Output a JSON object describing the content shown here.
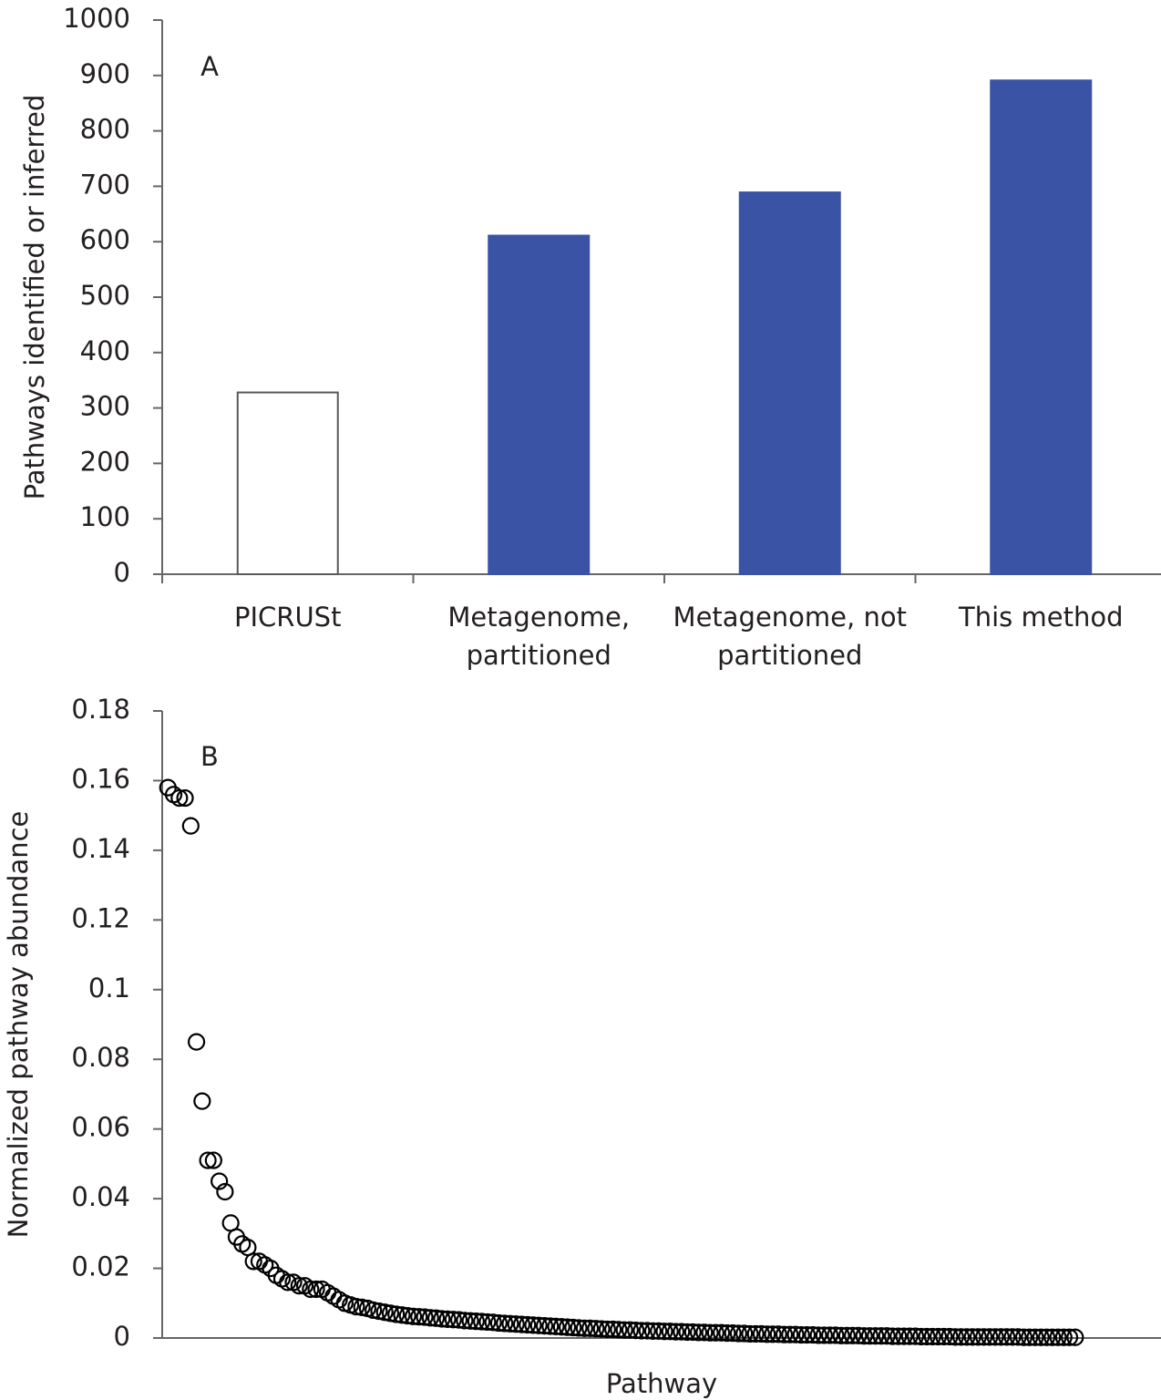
{
  "chart_data": [
    {
      "type": "bar",
      "annotation": "A",
      "ylabel": "Pathways identified or inferred",
      "categories": [
        "PICRUSt",
        "Metagenome, partitioned",
        "Metagenome, not partitioned",
        "This method"
      ],
      "values": [
        328,
        611,
        689,
        891
      ],
      "colors": [
        "#ffffff",
        "#3a53a4",
        "#3a53a4",
        "#3a53a4"
      ],
      "edgecolors": [
        "#595959",
        "#3a53a4",
        "#3a53a4",
        "#3a53a4"
      ],
      "ylim": [
        0,
        1000
      ],
      "yticks": [
        0,
        100,
        200,
        300,
        400,
        500,
        600,
        700,
        800,
        900,
        1000
      ],
      "grid": false
    },
    {
      "type": "scatter",
      "annotation": "B",
      "ylabel": "Normalized pathway abundance",
      "xlabel": "Pathway",
      "color": "#000000",
      "x": [
        1,
        2,
        3,
        4,
        5,
        6,
        7,
        8,
        9,
        10,
        11,
        12,
        13,
        14,
        15,
        16,
        17,
        18,
        19,
        20,
        21,
        22,
        23,
        24,
        25,
        26,
        27,
        28,
        29,
        30,
        31,
        32,
        33,
        34,
        35,
        36,
        37,
        38,
        39,
        40,
        41,
        42,
        43,
        44,
        45,
        46,
        47,
        48,
        49,
        50,
        51,
        52,
        53,
        54,
        55,
        56,
        57,
        58,
        59,
        60,
        61,
        62,
        63,
        64,
        65,
        66,
        67,
        68,
        69,
        70,
        71,
        72,
        73,
        74,
        75,
        76,
        77,
        78,
        79,
        80,
        81,
        82,
        83,
        84,
        85,
        86,
        87,
        88,
        89,
        90,
        91,
        92,
        93,
        94,
        95,
        96,
        97,
        98,
        99,
        100,
        101,
        102,
        103,
        104,
        105,
        106,
        107,
        108,
        109,
        110,
        111,
        112,
        113,
        114,
        115,
        116,
        117,
        118,
        119,
        120,
        121,
        122,
        123,
        124,
        125,
        126,
        127,
        128,
        129,
        130,
        131,
        132,
        133,
        134,
        135,
        136,
        137,
        138,
        139,
        140,
        141,
        142,
        143,
        144,
        145,
        146,
        147,
        148,
        149,
        150,
        151,
        152,
        153,
        154,
        155,
        156,
        157,
        158,
        159,
        160
      ],
      "values": [
        0.158,
        0.156,
        0.155,
        0.155,
        0.147,
        0.085,
        0.068,
        0.051,
        0.051,
        0.045,
        0.042,
        0.033,
        0.029,
        0.027,
        0.026,
        0.022,
        0.022,
        0.021,
        0.02,
        0.018,
        0.017,
        0.016,
        0.016,
        0.015,
        0.015,
        0.014,
        0.014,
        0.014,
        0.013,
        0.012,
        0.011,
        0.01,
        0.0095,
        0.009,
        0.0088,
        0.0085,
        0.008,
        0.0077,
        0.0074,
        0.0071,
        0.0068,
        0.0066,
        0.0064,
        0.0062,
        0.0061,
        0.006,
        0.0058,
        0.0057,
        0.0055,
        0.0054,
        0.0053,
        0.0052,
        0.005,
        0.0049,
        0.0048,
        0.0047,
        0.0046,
        0.0045,
        0.0043,
        0.0042,
        0.0041,
        0.004,
        0.0039,
        0.0038,
        0.0037,
        0.0036,
        0.0035,
        0.0034,
        0.0033,
        0.0032,
        0.0031,
        0.003,
        0.0029,
        0.0028,
        0.0028,
        0.0027,
        0.0026,
        0.0025,
        0.0025,
        0.0024,
        0.0023,
        0.0023,
        0.0022,
        0.0021,
        0.0021,
        0.002,
        0.002,
        0.0019,
        0.0019,
        0.0018,
        0.0018,
        0.0017,
        0.0017,
        0.0016,
        0.0016,
        0.0015,
        0.0015,
        0.0015,
        0.0014,
        0.0014,
        0.0013,
        0.0013,
        0.0012,
        0.0012,
        0.0012,
        0.0011,
        0.0011,
        0.0011,
        0.001,
        0.001,
        0.001,
        0.0009,
        0.0009,
        0.0009,
        0.0008,
        0.0008,
        0.0008,
        0.0008,
        0.0007,
        0.0007,
        0.0007,
        0.0007,
        0.0006,
        0.0006,
        0.0006,
        0.0006,
        0.0006,
        0.0005,
        0.0005,
        0.0005,
        0.0005,
        0.0005,
        0.0004,
        0.0004,
        0.0004,
        0.0004,
        0.0004,
        0.0004,
        0.0003,
        0.0003,
        0.0003,
        0.0003,
        0.0003,
        0.0003,
        0.0003,
        0.0003,
        0.0003,
        0.0003,
        0.0003,
        0.0003,
        0.0002,
        0.0002,
        0.0002,
        0.0002,
        0.0002,
        0.0002,
        0.0002,
        0.0002,
        0.0002,
        0.0002
      ],
      "xlim": [
        0,
        176
      ],
      "ylim": [
        0,
        0.18
      ],
      "yticks": [
        0,
        0.02,
        0.04,
        0.06,
        0.08,
        0.1,
        0.12,
        0.14,
        0.16,
        0.18
      ],
      "grid": false
    }
  ]
}
